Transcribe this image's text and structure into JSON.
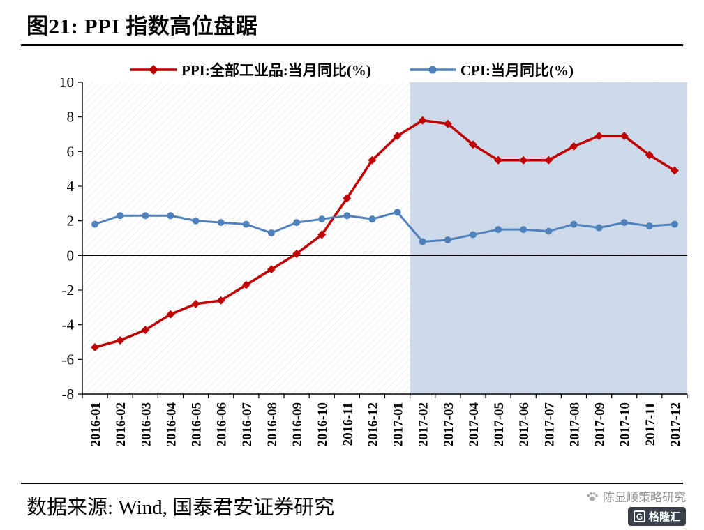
{
  "page": {
    "title": "图21: PPI 指数高位盘踞",
    "source_note": "数据来源: Wind, 国泰君安证券研究",
    "watermark_text": "陈显顺策略研究",
    "logo_letter": "G",
    "logo_text": "格隆汇"
  },
  "chart_data": {
    "type": "line",
    "title": "",
    "categories": [
      "2016-01",
      "2016-02",
      "2016-03",
      "2016-04",
      "2016-05",
      "2016-06",
      "2016-07",
      "2016-08",
      "2016-09",
      "2016-10",
      "2016-11",
      "2016-12",
      "2017-01",
      "2017-02",
      "2017-03",
      "2017-04",
      "2017-05",
      "2017-06",
      "2017-07",
      "2017-08",
      "2017-09",
      "2017-10",
      "2017-11",
      "2017-12"
    ],
    "series": [
      {
        "name": "PPI:全部工业品:当月同比(%)",
        "color": "#c00000",
        "marker": "diamond",
        "values": [
          -5.3,
          -4.9,
          -4.3,
          -3.4,
          -2.8,
          -2.6,
          -1.7,
          -0.8,
          0.1,
          1.2,
          3.3,
          5.5,
          6.9,
          7.8,
          7.6,
          6.4,
          5.5,
          5.5,
          5.5,
          6.3,
          6.9,
          6.9,
          5.8,
          4.9
        ]
      },
      {
        "name": "CPI:当月同比(%)",
        "color": "#4f81bd",
        "marker": "circle",
        "values": [
          1.8,
          2.3,
          2.3,
          2.3,
          2.0,
          1.9,
          1.8,
          1.3,
          1.9,
          2.1,
          2.3,
          2.1,
          2.5,
          0.8,
          0.9,
          1.2,
          1.5,
          1.5,
          1.4,
          1.8,
          1.6,
          1.9,
          1.7,
          1.8
        ]
      }
    ],
    "ylim": [
      -8,
      10
    ],
    "ytick_step": 2,
    "legend_position": "top",
    "grid": false,
    "highlight_region": {
      "from_category": "2017-02",
      "to_category": "2017-12",
      "color": "#ccd9ea"
    }
  }
}
